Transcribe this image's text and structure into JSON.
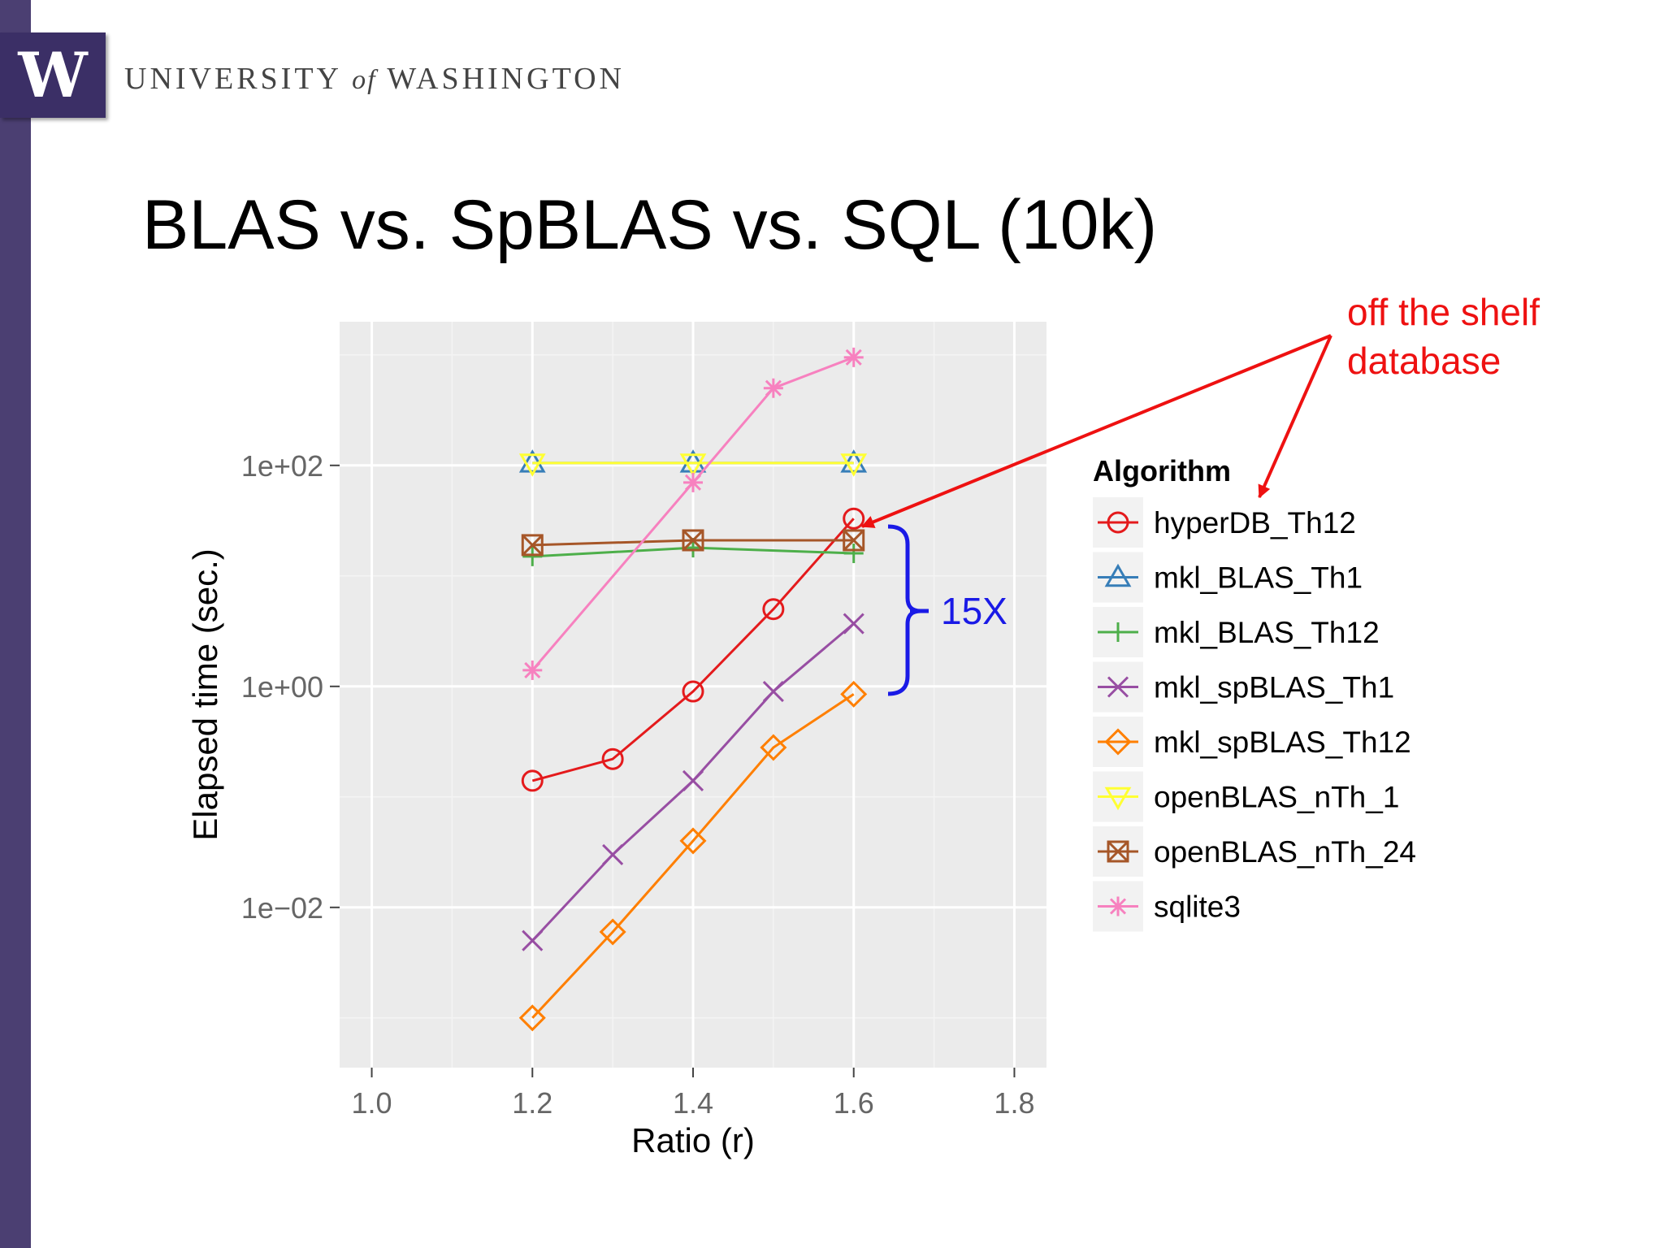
{
  "header": {
    "logo_letter": "W",
    "university_part1": "UNIVERSITY",
    "university_of": "of",
    "university_part2": "WASHINGTON"
  },
  "slide": {
    "title": "BLAS vs. SpBLAS vs. SQL (10k)"
  },
  "annotations": {
    "callout_line1": "off the shelf",
    "callout_line2": "database",
    "bracket_label": "15X",
    "callout_color": "#ee1111",
    "bracket_color": "#1a1ae6"
  },
  "chart_data": {
    "type": "line",
    "title": "",
    "xlabel": "Ratio (r)",
    "ylabel": "Elapsed time (sec.)",
    "x_scale": "linear",
    "y_scale": "log10",
    "xlim": [
      0.96,
      1.84
    ],
    "ylim_log10": [
      -3.45,
      3.3
    ],
    "x_ticks": [
      1.0,
      1.2,
      1.4,
      1.6,
      1.8
    ],
    "x_tick_labels": [
      "1.0",
      "1.2",
      "1.4",
      "1.6",
      "1.8"
    ],
    "y_ticks_log10": [
      -2,
      0,
      2
    ],
    "y_tick_labels": [
      "1e−02",
      "1e+00",
      "1e+02"
    ],
    "grid": true,
    "legend_title": "Algorithm",
    "legend_position": "right",
    "series": [
      {
        "name": "hyperDB_Th12",
        "color": "#e41a1c",
        "marker": "circle",
        "x": [
          1.2,
          1.3,
          1.4,
          1.5,
          1.6
        ],
        "y": [
          0.14,
          0.22,
          0.9,
          5.0,
          33
        ]
      },
      {
        "name": "mkl_BLAS_Th1",
        "color": "#377eb8",
        "marker": "triangle",
        "x": [
          1.2,
          1.4,
          1.6
        ],
        "y": [
          105,
          105,
          105
        ]
      },
      {
        "name": "mkl_BLAS_Th12",
        "color": "#4daf4a",
        "marker": "plus",
        "x": [
          1.2,
          1.4,
          1.6
        ],
        "y": [
          15,
          18,
          16
        ]
      },
      {
        "name": "mkl_spBLAS_Th1",
        "color": "#984ea3",
        "marker": "x",
        "x": [
          1.2,
          1.3,
          1.4,
          1.5,
          1.6
        ],
        "y": [
          0.005,
          0.03,
          0.14,
          0.9,
          3.7
        ]
      },
      {
        "name": "mkl_spBLAS_Th12",
        "color": "#ff7f00",
        "marker": "diamond",
        "x": [
          1.2,
          1.3,
          1.4,
          1.5,
          1.6
        ],
        "y": [
          0.001,
          0.006,
          0.04,
          0.28,
          0.85
        ]
      },
      {
        "name": "openBLAS_nTh_1",
        "color": "#ffff33",
        "marker": "triangle-down",
        "x": [
          1.2,
          1.4,
          1.6
        ],
        "y": [
          105,
          105,
          105
        ]
      },
      {
        "name": "openBLAS_nTh_24",
        "color": "#a65628",
        "marker": "box-x",
        "x": [
          1.2,
          1.4,
          1.6
        ],
        "y": [
          19,
          21,
          21
        ]
      },
      {
        "name": "sqlite3",
        "color": "#f781bf",
        "marker": "asterisk",
        "x": [
          1.2,
          1.4,
          1.5,
          1.6
        ],
        "y": [
          1.4,
          70,
          500,
          950
        ]
      }
    ]
  }
}
